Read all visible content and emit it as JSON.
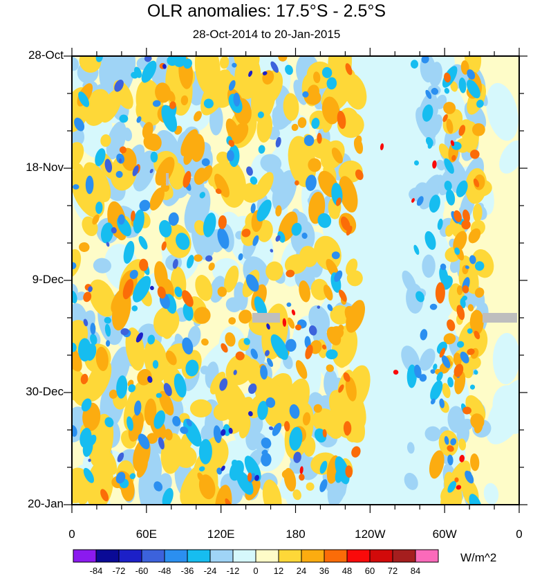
{
  "chart_data": {
    "type": "heatmap",
    "title": "OLR anomalies: 17.5°S - 2.5°S",
    "subtitle": "28-Oct-2014 to 20-Jan-2015",
    "x_ticks": [
      "0",
      "60E",
      "120E",
      "180",
      "120W",
      "60W",
      "0"
    ],
    "x_range_deg_east": [
      0,
      360
    ],
    "y_ticks": [
      "28-Oct",
      "18-Nov",
      "9-Dec",
      "30-Dec",
      "20-Jan"
    ],
    "y_range": [
      "2014-10-28",
      "2015-01-20"
    ],
    "colorbar": {
      "labels": [
        "-84",
        "-72",
        "-60",
        "-48",
        "-36",
        "-24",
        "-12",
        "0",
        "12",
        "24",
        "36",
        "48",
        "60",
        "72",
        "84"
      ],
      "colors": [
        "#8b1aef",
        "#0a0a96",
        "#1c20c8",
        "#3c62dc",
        "#2b8ff0",
        "#16bdf0",
        "#9fd4f6",
        "#d6f8fc",
        "#fefcc8",
        "#fed838",
        "#fcac10",
        "#fb6c08",
        "#fa0a0a",
        "#d20a0a",
        "#a51e1e",
        "#fb6aba"
      ],
      "unit": "W/m^2"
    },
    "missing_color": "#bebebe"
  }
}
